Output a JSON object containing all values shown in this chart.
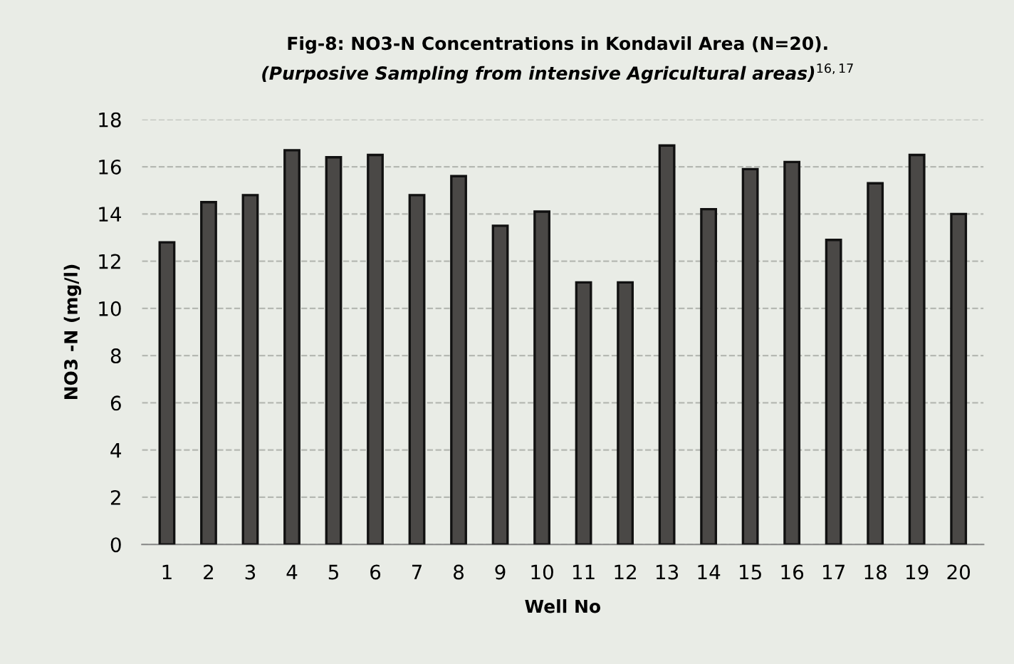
{
  "chart_data": {
    "type": "bar",
    "title": "Fig-8: NO3-N Concentrations in Kondavil Area (N=20).",
    "subtitle": "(Purposive Sampling from intensive Agricultural areas)$^{16,17}$",
    "xlabel": "Well No",
    "ylabel": "NO3 -N (mg/l)",
    "categories": [
      "1",
      "2",
      "3",
      "4",
      "5",
      "6",
      "7",
      "8",
      "9",
      "10",
      "11",
      "12",
      "13",
      "14",
      "15",
      "16",
      "17",
      "18",
      "19",
      "20"
    ],
    "values": [
      12.8,
      14.5,
      14.8,
      16.7,
      16.4,
      16.5,
      14.8,
      15.6,
      13.5,
      14.1,
      11.1,
      11.1,
      16.9,
      14.2,
      15.9,
      16.2,
      12.9,
      15.3,
      16.5,
      14.0
    ],
    "color": "#4a4846",
    "ylim": [
      0,
      18
    ],
    "yticks": [
      0,
      2,
      4,
      6,
      8,
      10,
      12,
      14,
      16,
      18
    ],
    "grid": "y"
  }
}
